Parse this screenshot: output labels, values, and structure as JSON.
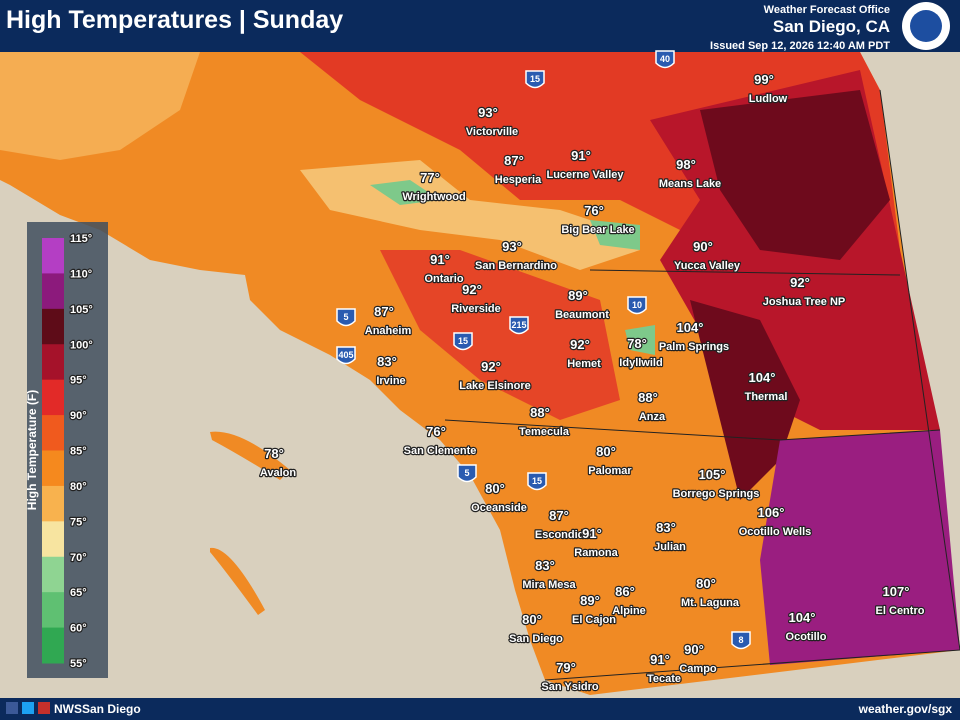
{
  "header": {
    "title": "High Temperatures | Sunday",
    "office_line": "Weather Forecast Office",
    "office": "San Diego, CA",
    "issued": "Issued Sep 12, 2026 12:40 AM PDT"
  },
  "legend": {
    "title": "High Temperature (F)",
    "ticks": [
      "115°",
      "110°",
      "105°",
      "100°",
      "95°",
      "90°",
      "85°",
      "80°",
      "75°",
      "70°",
      "65°",
      "60°",
      "55°"
    ]
  },
  "cities": [
    {
      "name": "Victorville",
      "temp": "93°"
    },
    {
      "name": "Ludlow",
      "temp": "99°"
    },
    {
      "name": "Hesperia",
      "temp": "87°"
    },
    {
      "name": "Lucerne Valley",
      "temp": "91°"
    },
    {
      "name": "Means Lake",
      "temp": "98°"
    },
    {
      "name": "Wrightwood",
      "temp": "77°"
    },
    {
      "name": "Big Bear Lake",
      "temp": "76°"
    },
    {
      "name": "San Bernardino",
      "temp": "93°"
    },
    {
      "name": "Ontario",
      "temp": "91°"
    },
    {
      "name": "Yucca Valley",
      "temp": "90°"
    },
    {
      "name": "Joshua Tree NP",
      "temp": "92°"
    },
    {
      "name": "Riverside",
      "temp": "92°"
    },
    {
      "name": "Beaumont",
      "temp": "89°"
    },
    {
      "name": "Anaheim",
      "temp": "87°"
    },
    {
      "name": "Palm Springs",
      "temp": "104°"
    },
    {
      "name": "Hemet",
      "temp": "92°"
    },
    {
      "name": "Idyllwild",
      "temp": "78°"
    },
    {
      "name": "Irvine",
      "temp": "83°"
    },
    {
      "name": "Lake Elsinore",
      "temp": "92°"
    },
    {
      "name": "Thermal",
      "temp": "104°"
    },
    {
      "name": "Anza",
      "temp": "88°"
    },
    {
      "name": "Temecula",
      "temp": "88°"
    },
    {
      "name": "San Clemente",
      "temp": "76°"
    },
    {
      "name": "Avalon",
      "temp": "78°"
    },
    {
      "name": "Palomar",
      "temp": "80°"
    },
    {
      "name": "Borrego Springs",
      "temp": "105°"
    },
    {
      "name": "Oceanside",
      "temp": "80°"
    },
    {
      "name": "Ocotillo Wells",
      "temp": "106°"
    },
    {
      "name": "Escondido",
      "temp": "87°"
    },
    {
      "name": "Ramona",
      "temp": "91°"
    },
    {
      "name": "Julian",
      "temp": "83°"
    },
    {
      "name": "Mira Mesa",
      "temp": "83°"
    },
    {
      "name": "Alpine",
      "temp": "86°"
    },
    {
      "name": "El Cajon",
      "temp": "89°"
    },
    {
      "name": "Mt. Laguna",
      "temp": "80°"
    },
    {
      "name": "El Centro",
      "temp": "107°"
    },
    {
      "name": "Ocotillo",
      "temp": "104°"
    },
    {
      "name": "San Diego",
      "temp": "80°"
    },
    {
      "name": "Campo",
      "temp": "90°"
    },
    {
      "name": "Tecate",
      "temp": "91°"
    },
    {
      "name": "San Ysidro",
      "temp": "79°"
    }
  ],
  "highways": [
    "15",
    "40",
    "10",
    "215",
    "15",
    "5",
    "405",
    "5",
    "15",
    "8"
  ],
  "footer": {
    "social": "NWSSan Diego",
    "url": "weather.gov/sgx"
  }
}
